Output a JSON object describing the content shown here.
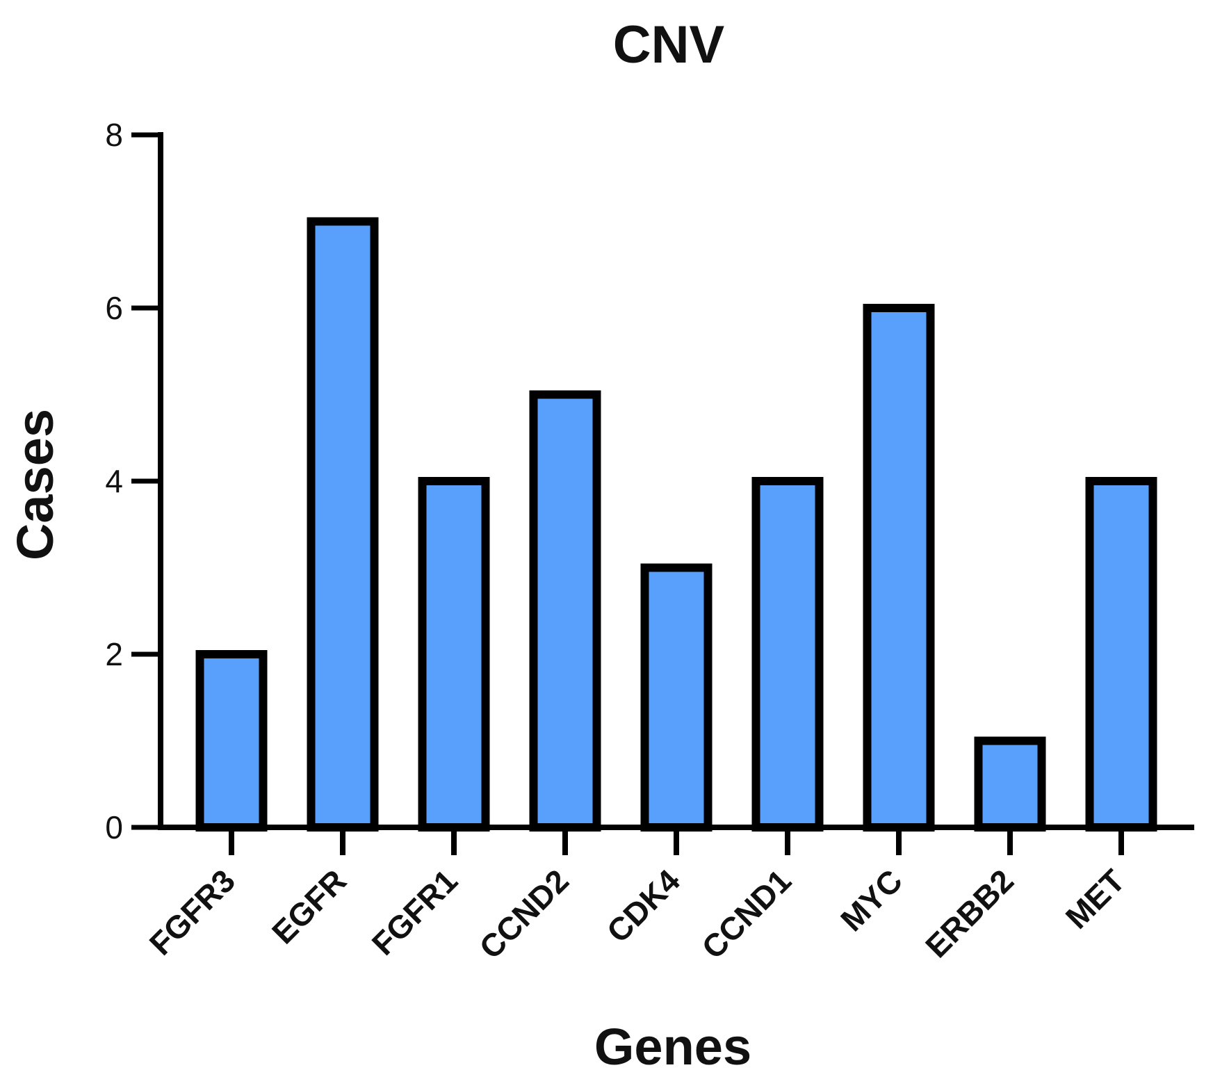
{
  "chart_data": {
    "type": "bar",
    "title": "CNV",
    "xlabel": "Genes",
    "ylabel": "Cases",
    "categories": [
      "FGFR3",
      "EGFR",
      "FGFR1",
      "CCND2",
      "CDK4",
      "CCND1",
      "MYC",
      "ERBB2",
      "MET"
    ],
    "values": [
      2,
      7,
      4,
      5,
      3,
      4,
      6,
      1,
      4
    ],
    "ylim": [
      0,
      8
    ],
    "yticks": [
      "0",
      "2",
      "4",
      "6",
      "8"
    ],
    "grid": false,
    "legend": "none",
    "colors": {
      "bar_fill": "#58a0fb",
      "bar_stroke": "#000000",
      "axis": "#000000"
    }
  }
}
